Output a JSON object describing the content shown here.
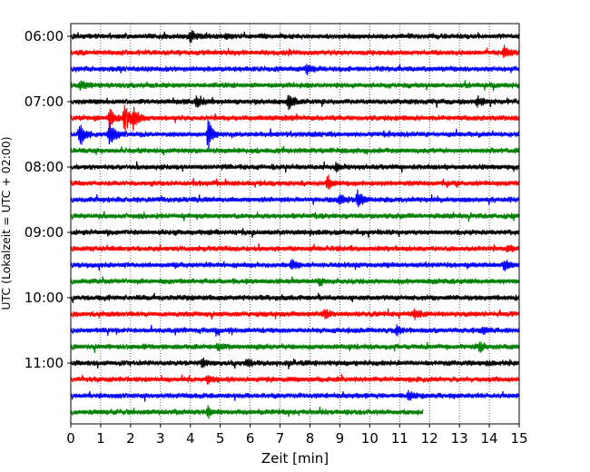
{
  "chart_data": {
    "type": "line",
    "title": "",
    "xlabel": "Zeit  [min]",
    "ylabel": "UTC (Lokalzeit = UTC + 02:00)",
    "xlim": [
      0,
      15
    ],
    "x_ticks": [
      "0",
      "1",
      "2",
      "3",
      "4",
      "5",
      "6",
      "7",
      "8",
      "9",
      "10",
      "11",
      "12",
      "13",
      "14",
      "15"
    ],
    "y_ticks": [
      "06:00",
      "07:00",
      "08:00",
      "09:00",
      "10:00",
      "11:00"
    ],
    "grid": "vertical dotted",
    "trace_interval_minutes": 15,
    "color_cycle": [
      "#000000",
      "#ff0000",
      "#0000ff",
      "#008000"
    ],
    "traces": [
      {
        "start": "06:00",
        "end_min": 15,
        "color": "#000000",
        "events": [
          {
            "t": 4.0,
            "amp": 0.35
          },
          {
            "t": 5.2,
            "amp": 0.15
          }
        ]
      },
      {
        "start": "06:15",
        "end_min": 15,
        "color": "#ff0000",
        "events": [
          {
            "t": 14.5,
            "amp": 0.35
          }
        ]
      },
      {
        "start": "06:30",
        "end_min": 15,
        "color": "#0000ff",
        "events": [
          {
            "t": 7.9,
            "amp": 0.3
          }
        ]
      },
      {
        "start": "06:45",
        "end_min": 15,
        "color": "#008000",
        "events": [
          {
            "t": 0.3,
            "amp": 0.25
          }
        ]
      },
      {
        "start": "07:00",
        "end_min": 15,
        "color": "#000000",
        "events": [
          {
            "t": 4.2,
            "amp": 0.35
          },
          {
            "t": 7.3,
            "amp": 0.45
          },
          {
            "t": 13.6,
            "amp": 0.3
          }
        ]
      },
      {
        "start": "07:15",
        "end_min": 15,
        "color": "#ff0000",
        "events": [
          {
            "t": 1.3,
            "amp": 0.6
          },
          {
            "t": 1.8,
            "amp": 0.9
          },
          {
            "t": 2.1,
            "amp": 0.6
          }
        ]
      },
      {
        "start": "07:30",
        "end_min": 15,
        "color": "#0000ff",
        "events": [
          {
            "t": 0.3,
            "amp": 0.75
          },
          {
            "t": 1.3,
            "amp": 0.85
          },
          {
            "t": 4.6,
            "amp": 0.95
          }
        ]
      },
      {
        "start": "07:45",
        "end_min": 15,
        "color": "#008000",
        "events": []
      },
      {
        "start": "08:00",
        "end_min": 15,
        "color": "#000000",
        "events": [
          {
            "t": 8.9,
            "amp": 0.25
          }
        ]
      },
      {
        "start": "08:15",
        "end_min": 15,
        "color": "#ff0000",
        "events": [
          {
            "t": 8.6,
            "amp": 0.4
          }
        ]
      },
      {
        "start": "08:30",
        "end_min": 15,
        "color": "#0000ff",
        "events": [
          {
            "t": 9.0,
            "amp": 0.3
          },
          {
            "t": 9.6,
            "amp": 0.55
          }
        ]
      },
      {
        "start": "08:45",
        "end_min": 15,
        "color": "#008000",
        "events": []
      },
      {
        "start": "09:00",
        "end_min": 15,
        "color": "#000000",
        "events": []
      },
      {
        "start": "09:15",
        "end_min": 15,
        "color": "#ff0000",
        "events": [
          {
            "t": 14.6,
            "amp": 0.2
          }
        ]
      },
      {
        "start": "09:30",
        "end_min": 15,
        "color": "#0000ff",
        "events": [
          {
            "t": 7.4,
            "amp": 0.3
          },
          {
            "t": 14.5,
            "amp": 0.3
          }
        ]
      },
      {
        "start": "09:45",
        "end_min": 15,
        "color": "#008000",
        "events": [
          {
            "t": 8.3,
            "amp": 0.2
          }
        ]
      },
      {
        "start": "10:00",
        "end_min": 15,
        "color": "#000000",
        "events": []
      },
      {
        "start": "10:15",
        "end_min": 15,
        "color": "#ff0000",
        "events": [
          {
            "t": 8.5,
            "amp": 0.3
          },
          {
            "t": 11.5,
            "amp": 0.3
          }
        ]
      },
      {
        "start": "10:30",
        "end_min": 15,
        "color": "#0000ff",
        "events": [
          {
            "t": 10.9,
            "amp": 0.25
          },
          {
            "t": 13.8,
            "amp": 0.25
          }
        ]
      },
      {
        "start": "10:45",
        "end_min": 15,
        "color": "#008000",
        "events": [
          {
            "t": 4.9,
            "amp": 0.2
          },
          {
            "t": 13.7,
            "amp": 0.25
          }
        ]
      },
      {
        "start": "11:00",
        "end_min": 15,
        "color": "#000000",
        "events": [
          {
            "t": 4.4,
            "amp": 0.3
          },
          {
            "t": 5.9,
            "amp": 0.2
          }
        ]
      },
      {
        "start": "11:15",
        "end_min": 15,
        "color": "#ff0000",
        "events": [
          {
            "t": 4.6,
            "amp": 0.2
          }
        ]
      },
      {
        "start": "11:30",
        "end_min": 15,
        "color": "#0000ff",
        "events": [
          {
            "t": 11.3,
            "amp": 0.25
          }
        ]
      },
      {
        "start": "11:45",
        "end_min": 11.8,
        "color": "#008000",
        "events": [
          {
            "t": 4.6,
            "amp": 0.3
          }
        ]
      }
    ]
  }
}
